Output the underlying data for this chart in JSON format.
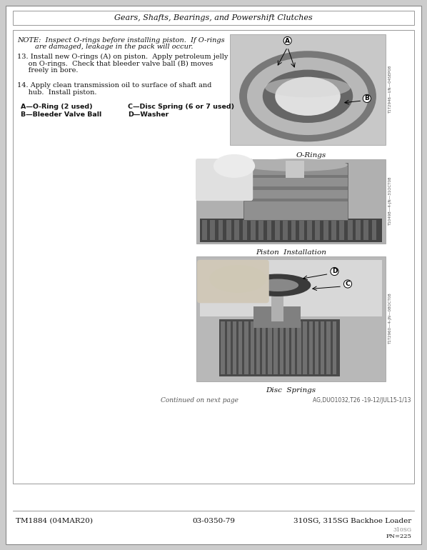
{
  "page_title": "Gears, Shafts, Bearings, and Powershift Clutches",
  "footer_left": "TM1884 (04MAR20)",
  "footer_center": "03-0350-79",
  "footer_right": "310SG, 315SG Backhoe Loader",
  "footer_sub": "310SG",
  "footer_pn": "PN=225",
  "continued_text": "Continued on next page",
  "doc_ref": "AG,DUO1032,T26 -19-12/JUL15-1/13",
  "note_text_line1": "NOTE:  Inspect O-rings before installing piston.  If O-rings",
  "note_text_line2": "        are damaged, leakage in the pack will occur.",
  "step13_line1": "13. Install new O-rings (A) on piston.  Apply petroleum jelly",
  "step13_line2": "     on O-rings.  Check that bleeder valve ball (B) moves",
  "step13_line3": "     freely in bore.",
  "step14_line1": "14. Apply clean transmission oil to surface of shaft and",
  "step14_line2": "     hub.  Install piston.",
  "legend_A": "A—O-Ring (2 used)",
  "legend_B": "B—Bleeder Valve Ball",
  "legend_C": "C—Disc Spring (6 or 7 used)",
  "legend_D": "D—Washer",
  "label_orings": "O-Rings",
  "label_piston": "Piston  Installation",
  "label_disc": "Disc  Springs",
  "img_ref1": "T1T2946—UN—04SEP08",
  "img_ref2": "T10498—4-JN—31OCT08",
  "img_ref3": "T1T2960—4-JN—08OCT08",
  "bg_color": "#cccccc",
  "page_color": "#ffffff",
  "content_bg": "#ffffff",
  "photo_bg1": "#c8c8c8",
  "photo_bg2": "#b0b0b0",
  "photo_bg3": "#b8b8b8"
}
